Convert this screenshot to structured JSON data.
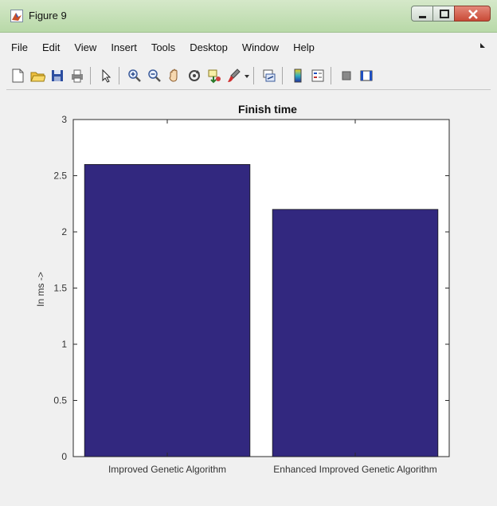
{
  "window": {
    "title": "Figure 9",
    "accent": "#6fb43f"
  },
  "menu": {
    "items": [
      {
        "label": "File",
        "name": "menu-file"
      },
      {
        "label": "Edit",
        "name": "menu-edit"
      },
      {
        "label": "View",
        "name": "menu-view"
      },
      {
        "label": "Insert",
        "name": "menu-insert"
      },
      {
        "label": "Tools",
        "name": "menu-tools"
      },
      {
        "label": "Desktop",
        "name": "menu-desktop"
      },
      {
        "label": "Window",
        "name": "menu-window"
      },
      {
        "label": "Help",
        "name": "menu-help"
      }
    ]
  },
  "toolbar": {
    "icons": [
      "new-figure-icon",
      "open-file-icon",
      "save-icon",
      "print-icon",
      "pointer-icon",
      "zoom-in-icon",
      "zoom-out-icon",
      "pan-icon",
      "rotate-icon",
      "data-cursor-icon",
      "brush-icon",
      "link-plot-icon",
      "colorbar-icon",
      "legend-icon",
      "hide-plot-tools-icon",
      "show-plot-tools-icon"
    ]
  },
  "chart_data": {
    "type": "bar",
    "title": "Finish time",
    "xlabel": "",
    "ylabel": "In ms ->",
    "categories": [
      "Improved Genetic Algorithm",
      "Enhanced Improved Genetic Algorithm"
    ],
    "values": [
      2.6,
      2.2
    ],
    "ylim": [
      0,
      3
    ],
    "yticks": [
      "0",
      "0.5",
      "1",
      "1.5",
      "2",
      "2.5",
      "3"
    ],
    "bar_color": "#32287f",
    "grid": false,
    "legend": "none"
  }
}
